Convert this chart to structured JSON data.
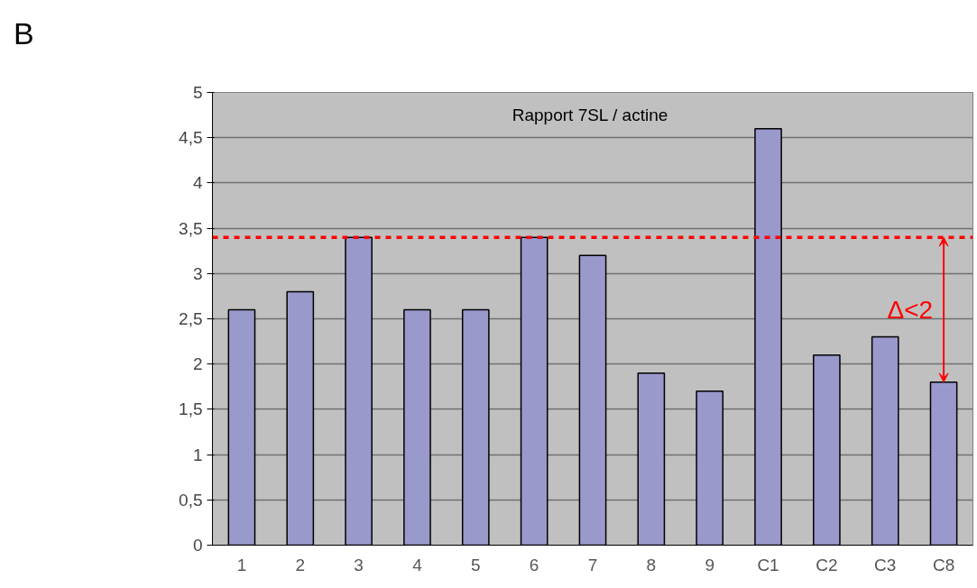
{
  "chart_data": {
    "type": "bar",
    "title": "Rapport  7SL / actine",
    "categories": [
      "1",
      "2",
      "3",
      "4",
      "5",
      "6",
      "7",
      "8",
      "9",
      "C1",
      "C2",
      "C3",
      "C8"
    ],
    "values": [
      2.6,
      2.8,
      3.4,
      2.6,
      2.6,
      3.4,
      3.2,
      1.9,
      1.7,
      4.6,
      2.1,
      2.3,
      1.8
    ],
    "color": "#9999cc",
    "ylim": [
      0,
      5
    ],
    "yticks": [
      0,
      {
        "value": 0.5,
        "label": "0,5"
      },
      1,
      {
        "value": 1.5,
        "label": "1,5"
      },
      2,
      {
        "value": 2.5,
        "label": "2,5"
      },
      3,
      {
        "value": 3.5,
        "label": "3,5"
      },
      4,
      {
        "value": 4.5,
        "label": "4,5"
      },
      5
    ],
    "grid": "y",
    "ref_lines": [
      {
        "axis": "y",
        "value": 3.4,
        "color": "#ff0000",
        "line_style": "dashed"
      }
    ],
    "annotations": [
      "B",
      "Δ<2"
    ]
  }
}
